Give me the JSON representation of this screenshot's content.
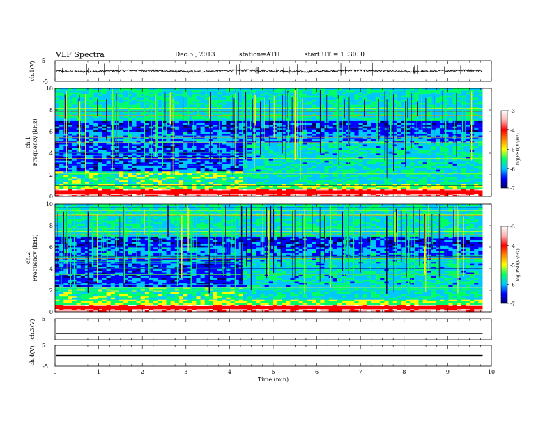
{
  "header": {
    "title": "VLF  Spectra",
    "date": "Dec.5  , 2013",
    "station": "station=ATH",
    "start": "start  UT  =   1  :30: 0"
  },
  "chart_data": [
    {
      "type": "line",
      "name": "ch1-waveform",
      "ylabel": "ch.1(V)",
      "yticks": [
        "5",
        "-5"
      ],
      "ylim": [
        -5,
        5
      ],
      "xlim": [
        0,
        10
      ],
      "trace_color": "#000000"
    },
    {
      "type": "heatmap",
      "name": "ch1-spectrogram",
      "panel_label": "ch.1",
      "ylabel": "Frequency  (kHz)",
      "yticks": [
        "0",
        "2",
        "4",
        "6",
        "8",
        "10"
      ],
      "ylim": [
        0,
        10
      ],
      "xlim": [
        0,
        10
      ],
      "colorbar": {
        "label": "log(PSD(V²/Hz)",
        "ticks": [
          "-3",
          "-4",
          "-5",
          "-6",
          "-7"
        ],
        "range": [
          -7,
          -3
        ],
        "colors": [
          "#000066",
          "#0000ff",
          "#00c8ff",
          "#00ff66",
          "#ffff00",
          "#ff8800",
          "#ff0000",
          "#ffb0b0",
          "#ffffff"
        ]
      }
    },
    {
      "type": "heatmap",
      "name": "ch2-spectrogram",
      "panel_label": "ch.2",
      "ylabel": "Frequency  (kHz)",
      "yticks": [
        "0",
        "2",
        "4",
        "6",
        "8",
        "10"
      ],
      "ylim": [
        0,
        10
      ],
      "xlim": [
        0,
        10
      ],
      "colorbar": {
        "label": "log(PSD(V²/Hz)",
        "ticks": [
          "-3",
          "-4",
          "-5",
          "-6",
          "-7"
        ],
        "range": [
          -7,
          -3
        ],
        "colors": [
          "#000066",
          "#0000ff",
          "#00c8ff",
          "#00ff66",
          "#ffff00",
          "#ff8800",
          "#ff0000",
          "#ffb0b0",
          "#ffffff"
        ]
      }
    },
    {
      "type": "line",
      "name": "ch3-waveform",
      "ylabel": "ch.3(V)",
      "yticks": [
        "5"
      ],
      "ylim": [
        -5,
        5
      ],
      "xlim": [
        0,
        10
      ],
      "trace_color": "#000000"
    },
    {
      "type": "line",
      "name": "ch4-waveform",
      "ylabel": "ch.4(V)",
      "yticks": [
        "5",
        "-5"
      ],
      "ylim": [
        -5,
        5
      ],
      "xlim": [
        0,
        10
      ],
      "trace_color": "#000000"
    }
  ],
  "xaxis": {
    "label": "Time  (min)",
    "ticks": [
      "0",
      "1",
      "2",
      "3",
      "4",
      "5",
      "6",
      "7",
      "8",
      "9",
      "10"
    ],
    "range": [
      0,
      10
    ],
    "data_end": 9.8
  }
}
